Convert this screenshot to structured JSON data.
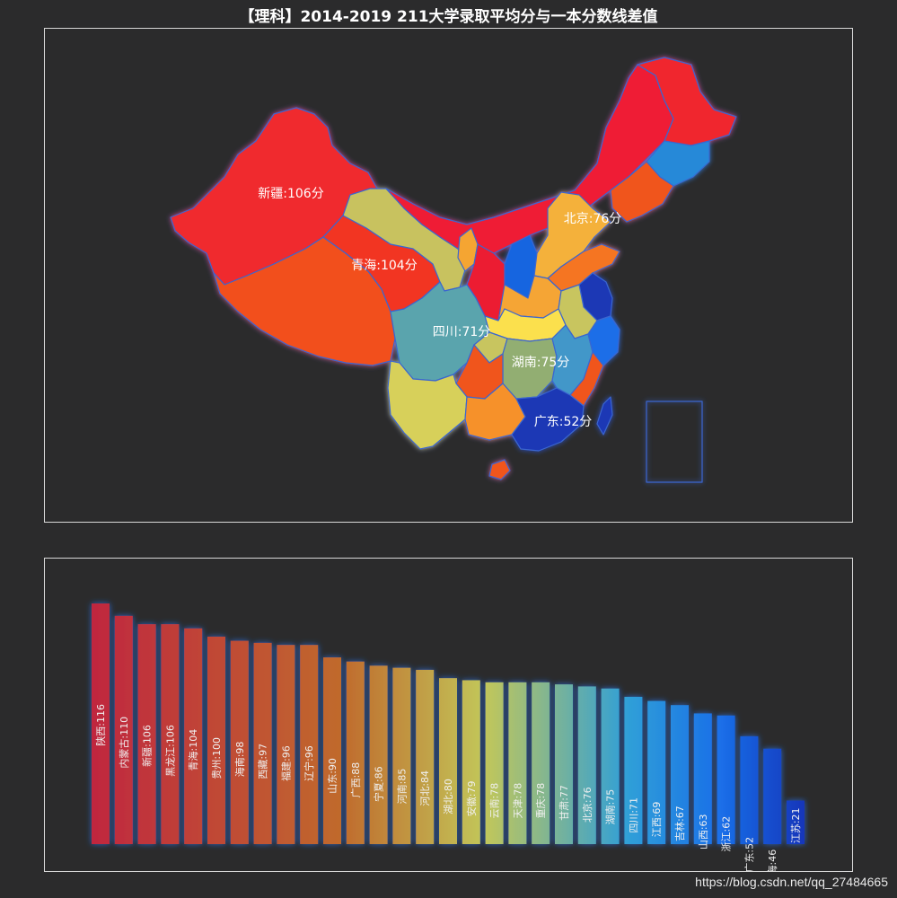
{
  "title": "【理科】2014-2019 211大学录取平均分与一本分数线差值",
  "watermark": "https://blog.csdn.net/qq_27484665",
  "chart_data": [
    {
      "type": "map",
      "unit_suffix": "分",
      "labeled_regions": [
        {
          "name": "新疆",
          "value": 106,
          "label": "新疆:106分"
        },
        {
          "name": "青海",
          "value": 104,
          "label": "青海:104分"
        },
        {
          "name": "北京",
          "value": 76,
          "label": "北京:76分"
        },
        {
          "name": "四川",
          "value": 71,
          "label": "四川:71分"
        },
        {
          "name": "湖南",
          "value": 75,
          "label": "湖南:75分"
        },
        {
          "name": "广东",
          "value": 52,
          "label": "广东:52分"
        }
      ]
    },
    {
      "type": "bar",
      "categories": [
        "陕西",
        "内蒙古",
        "新疆",
        "黑龙江",
        "青海",
        "贵州",
        "海南",
        "西藏",
        "福建",
        "辽宁",
        "山东",
        "广西",
        "宁夏",
        "河南",
        "河北",
        "湖北",
        "安徽",
        "云南",
        "天津",
        "重庆",
        "甘肃",
        "北京",
        "湖南",
        "四川",
        "江西",
        "吉林",
        "山西",
        "浙江",
        "广东",
        "上海",
        "江苏"
      ],
      "values": [
        116,
        110,
        106,
        106,
        104,
        100,
        98,
        97,
        96,
        96,
        90,
        88,
        86,
        85,
        84,
        80,
        79,
        78,
        78,
        78,
        77,
        76,
        75,
        71,
        69,
        67,
        63,
        62,
        52,
        46,
        21
      ],
      "ylim": [
        0,
        116
      ],
      "colors": [
        "#c0263f",
        "#c0812c",
        "#c2c75a",
        "#2f9fd8",
        "#1a6ee8",
        "#1233b8"
      ]
    }
  ]
}
